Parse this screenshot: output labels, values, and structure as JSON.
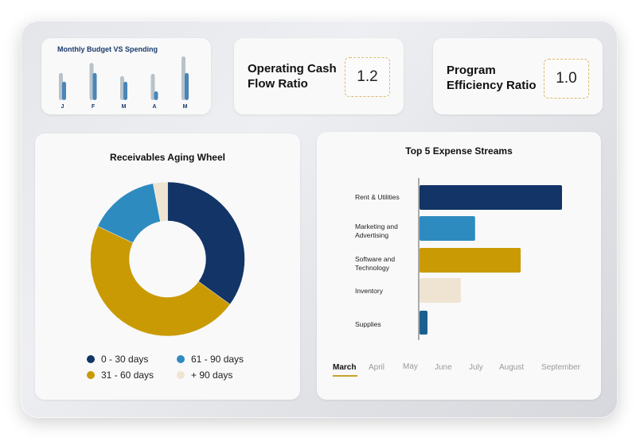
{
  "budget_card": {
    "title": "Monthly Budget VS Spending",
    "months": [
      "J",
      "F",
      "M",
      "A",
      "M"
    ],
    "budget": [
      0.62,
      0.85,
      0.55,
      0.6,
      1.0
    ],
    "spending": [
      0.42,
      0.62,
      0.42,
      0.2,
      0.62
    ]
  },
  "kpis": [
    {
      "label_line1": "Operating Cash",
      "label_line2": "Flow Ratio",
      "value": "1.2"
    },
    {
      "label_line1": "Program",
      "label_line2": "Efficiency Ratio",
      "value": "1.0"
    }
  ],
  "aging_wheel": {
    "title": "Receivables Aging Wheel",
    "segments": [
      {
        "label": "0 - 30 days",
        "value": 35,
        "color": "#123466"
      },
      {
        "label": "31 - 60 days",
        "value": 47,
        "color": "#c99a04"
      },
      {
        "label": "61 - 90 days",
        "value": 15,
        "color": "#2e8bc0"
      },
      {
        "label": "+ 90 days",
        "value": 3,
        "color": "#efe4d2"
      }
    ]
  },
  "expense_streams": {
    "title": "Top 5 Expense Streams",
    "items": [
      {
        "label": "Rent & Utilities",
        "value": 100,
        "color": "#123466"
      },
      {
        "label": "Marketing and Advertising",
        "value": 39,
        "color": "#2e8bc0"
      },
      {
        "label": "Software and Technology",
        "value": 71,
        "color": "#c99a04"
      },
      {
        "label": "Inventory",
        "value": 29,
        "color": "#efe4d2"
      },
      {
        "label": "Supplies",
        "value": 5,
        "color": "#1a5f8f"
      }
    ],
    "months": [
      "March",
      "April",
      "May",
      "June",
      "July",
      "August",
      "September"
    ],
    "active_month": "March"
  },
  "colors": {
    "navy": "#123466",
    "gold": "#c99a04",
    "blue": "#2e8bc0",
    "cream": "#efe4d2",
    "grey_bar": "#b8c2c9",
    "spend_bar": "#4a86b8"
  }
}
